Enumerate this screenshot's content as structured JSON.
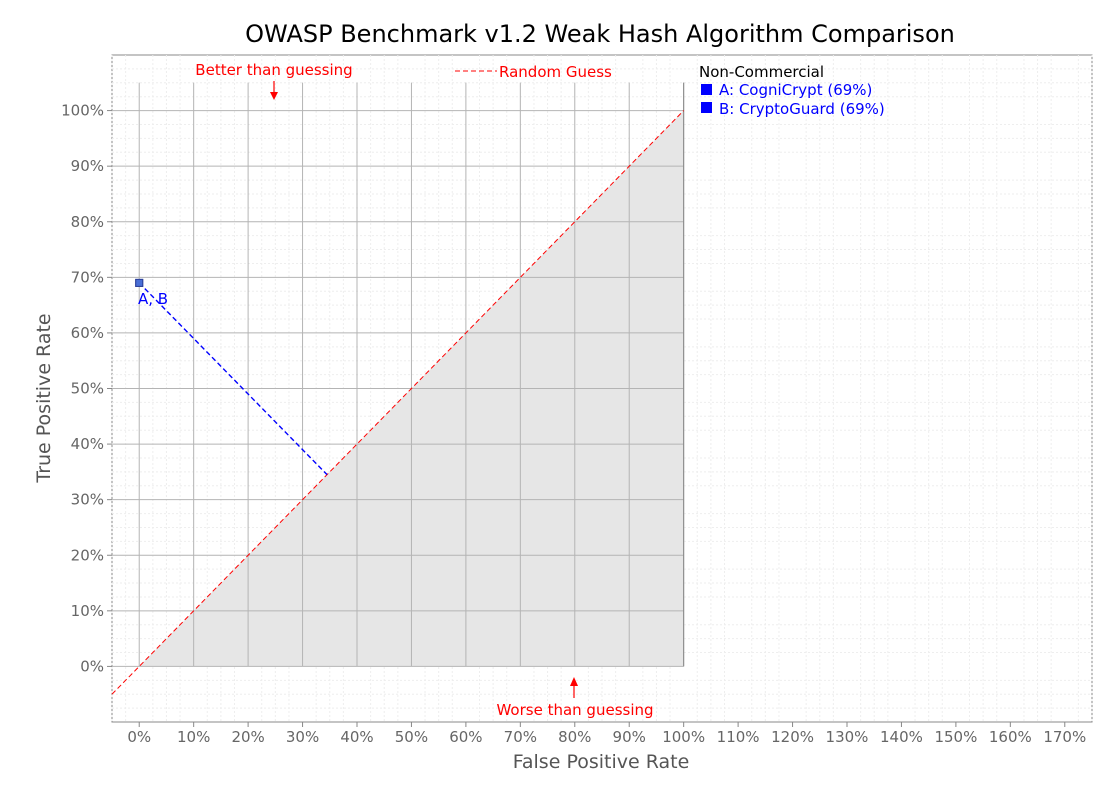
{
  "chart_data": {
    "type": "scatter",
    "title": "OWASP Benchmark v1.2 Weak Hash Algorithm Comparison",
    "xlabel": "False Positive Rate",
    "ylabel": "True Positive Rate",
    "xlim": [
      -5,
      175
    ],
    "ylim": [
      -10,
      110
    ],
    "x_ticks": [
      "0%",
      "10%",
      "20%",
      "30%",
      "40%",
      "50%",
      "60%",
      "70%",
      "80%",
      "90%",
      "100%",
      "110%",
      "120%",
      "130%",
      "140%",
      "150%",
      "160%",
      "170%"
    ],
    "y_ticks": [
      "0%",
      "10%",
      "20%",
      "30%",
      "40%",
      "50%",
      "60%",
      "70%",
      "80%",
      "90%",
      "100%"
    ],
    "grid": true,
    "legend_position": "top-right",
    "random_guess_label": "Random Guess",
    "annotations": {
      "better": "Better than guessing",
      "worse": "Worse than guessing"
    },
    "legend": {
      "heading": "Non-Commercial",
      "items": [
        "A: CogniCrypt (69%)",
        "B: CryptoGuard (69%)"
      ]
    },
    "series": [
      {
        "name": "A: CogniCrypt (69%)",
        "x": 0,
        "y": 69
      },
      {
        "name": "B: CryptoGuard (69%)",
        "x": 0,
        "y": 69
      }
    ],
    "point_label": "A, B",
    "colors": {
      "accent": "#0000ff",
      "guess_line": "#ff0000",
      "shade": "#e6e6e6"
    }
  }
}
